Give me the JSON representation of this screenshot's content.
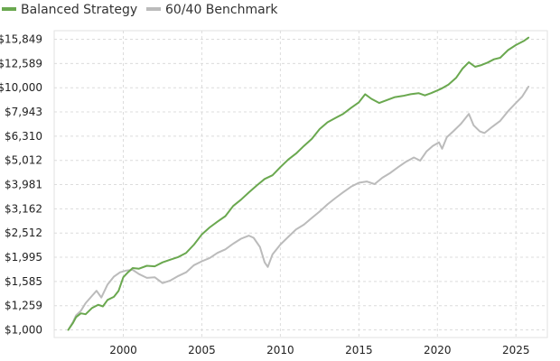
{
  "chart_data": {
    "type": "line",
    "title": "",
    "xlabel": "",
    "ylabel": "",
    "y_scale": "log",
    "xlim": [
      1995.6,
      2027.0
    ],
    "ylim": [
      930,
      17200
    ],
    "x_ticks": [
      2000,
      2005,
      2010,
      2015,
      2020,
      2025
    ],
    "y_ticks": [
      1000,
      1259,
      1585,
      1995,
      2512,
      3162,
      3981,
      5012,
      6310,
      7943,
      10000,
      12589,
      15849
    ],
    "y_tick_labels": [
      "$1,000",
      "$1,259",
      "$1,585",
      "$1,995",
      "$2,512",
      "$3,162",
      "$3,981",
      "$5,012",
      "$6,310",
      "$7,943",
      "$10,000",
      "$12,589",
      "$15,849"
    ],
    "grid": true,
    "legend_position": "top-left",
    "series": [
      {
        "name": "Balanced Strategy",
        "color": "#6aa84f",
        "points": [
          [
            1996.5,
            1000
          ],
          [
            1996.8,
            1070
          ],
          [
            1997.0,
            1130
          ],
          [
            1997.3,
            1170
          ],
          [
            1997.6,
            1160
          ],
          [
            1998.0,
            1230
          ],
          [
            1998.4,
            1270
          ],
          [
            1998.7,
            1250
          ],
          [
            1999.0,
            1330
          ],
          [
            1999.4,
            1370
          ],
          [
            1999.7,
            1450
          ],
          [
            2000.0,
            1650
          ],
          [
            2000.3,
            1730
          ],
          [
            2000.6,
            1800
          ],
          [
            2001.0,
            1790
          ],
          [
            2001.5,
            1840
          ],
          [
            2002.0,
            1830
          ],
          [
            2002.5,
            1900
          ],
          [
            2003.0,
            1950
          ],
          [
            2003.5,
            2000
          ],
          [
            2004.0,
            2080
          ],
          [
            2004.5,
            2250
          ],
          [
            2005.0,
            2480
          ],
          [
            2005.5,
            2650
          ],
          [
            2006.0,
            2800
          ],
          [
            2006.5,
            2950
          ],
          [
            2007.0,
            3250
          ],
          [
            2007.5,
            3450
          ],
          [
            2008.0,
            3700
          ],
          [
            2008.5,
            3950
          ],
          [
            2009.0,
            4200
          ],
          [
            2009.5,
            4350
          ],
          [
            2010.0,
            4700
          ],
          [
            2010.5,
            5050
          ],
          [
            2011.0,
            5350
          ],
          [
            2011.5,
            5750
          ],
          [
            2012.0,
            6150
          ],
          [
            2012.5,
            6750
          ],
          [
            2013.0,
            7200
          ],
          [
            2013.5,
            7500
          ],
          [
            2014.0,
            7800
          ],
          [
            2014.5,
            8250
          ],
          [
            2015.0,
            8700
          ],
          [
            2015.4,
            9400
          ],
          [
            2015.8,
            9000
          ],
          [
            2016.3,
            8650
          ],
          [
            2016.8,
            8900
          ],
          [
            2017.3,
            9150
          ],
          [
            2017.8,
            9250
          ],
          [
            2018.3,
            9400
          ],
          [
            2018.8,
            9500
          ],
          [
            2019.2,
            9300
          ],
          [
            2019.6,
            9500
          ],
          [
            2020.0,
            9750
          ],
          [
            2020.3,
            9950
          ],
          [
            2020.7,
            10300
          ],
          [
            2021.2,
            11000
          ],
          [
            2021.6,
            12000
          ],
          [
            2022.0,
            12750
          ],
          [
            2022.4,
            12200
          ],
          [
            2022.8,
            12400
          ],
          [
            2023.2,
            12700
          ],
          [
            2023.6,
            13100
          ],
          [
            2024.0,
            13300
          ],
          [
            2024.5,
            14300
          ],
          [
            2025.0,
            15000
          ],
          [
            2025.5,
            15600
          ],
          [
            2025.8,
            16100
          ]
        ]
      },
      {
        "name": "60/40 Benchmark",
        "color": "#bbbbbb",
        "points": [
          [
            1996.5,
            1000
          ],
          [
            1996.8,
            1080
          ],
          [
            1997.0,
            1150
          ],
          [
            1997.3,
            1200
          ],
          [
            1997.6,
            1290
          ],
          [
            1998.0,
            1380
          ],
          [
            1998.3,
            1450
          ],
          [
            1998.6,
            1360
          ],
          [
            1999.0,
            1540
          ],
          [
            1999.4,
            1660
          ],
          [
            1999.8,
            1730
          ],
          [
            2000.2,
            1760
          ],
          [
            2000.6,
            1770
          ],
          [
            2001.0,
            1700
          ],
          [
            2001.5,
            1640
          ],
          [
            2002.0,
            1650
          ],
          [
            2002.5,
            1560
          ],
          [
            2003.0,
            1600
          ],
          [
            2003.5,
            1670
          ],
          [
            2004.0,
            1730
          ],
          [
            2004.5,
            1850
          ],
          [
            2005.0,
            1920
          ],
          [
            2005.5,
            1980
          ],
          [
            2006.0,
            2080
          ],
          [
            2006.5,
            2150
          ],
          [
            2007.0,
            2270
          ],
          [
            2007.5,
            2380
          ],
          [
            2008.0,
            2450
          ],
          [
            2008.3,
            2400
          ],
          [
            2008.7,
            2200
          ],
          [
            2009.0,
            1900
          ],
          [
            2009.2,
            1820
          ],
          [
            2009.5,
            2050
          ],
          [
            2010.0,
            2250
          ],
          [
            2010.5,
            2420
          ],
          [
            2011.0,
            2600
          ],
          [
            2011.5,
            2720
          ],
          [
            2012.0,
            2900
          ],
          [
            2012.5,
            3080
          ],
          [
            2013.0,
            3300
          ],
          [
            2013.5,
            3500
          ],
          [
            2014.0,
            3700
          ],
          [
            2014.5,
            3900
          ],
          [
            2015.0,
            4050
          ],
          [
            2015.5,
            4100
          ],
          [
            2016.0,
            4000
          ],
          [
            2016.5,
            4250
          ],
          [
            2017.0,
            4450
          ],
          [
            2017.5,
            4700
          ],
          [
            2018.0,
            4950
          ],
          [
            2018.5,
            5150
          ],
          [
            2018.9,
            5000
          ],
          [
            2019.3,
            5450
          ],
          [
            2019.7,
            5750
          ],
          [
            2020.1,
            5950
          ],
          [
            2020.3,
            5600
          ],
          [
            2020.6,
            6250
          ],
          [
            2021.0,
            6600
          ],
          [
            2021.5,
            7100
          ],
          [
            2022.0,
            7800
          ],
          [
            2022.3,
            7000
          ],
          [
            2022.7,
            6600
          ],
          [
            2023.0,
            6500
          ],
          [
            2023.5,
            6900
          ],
          [
            2024.0,
            7300
          ],
          [
            2024.5,
            8000
          ],
          [
            2025.0,
            8650
          ],
          [
            2025.4,
            9200
          ],
          [
            2025.8,
            10100
          ]
        ]
      }
    ]
  }
}
